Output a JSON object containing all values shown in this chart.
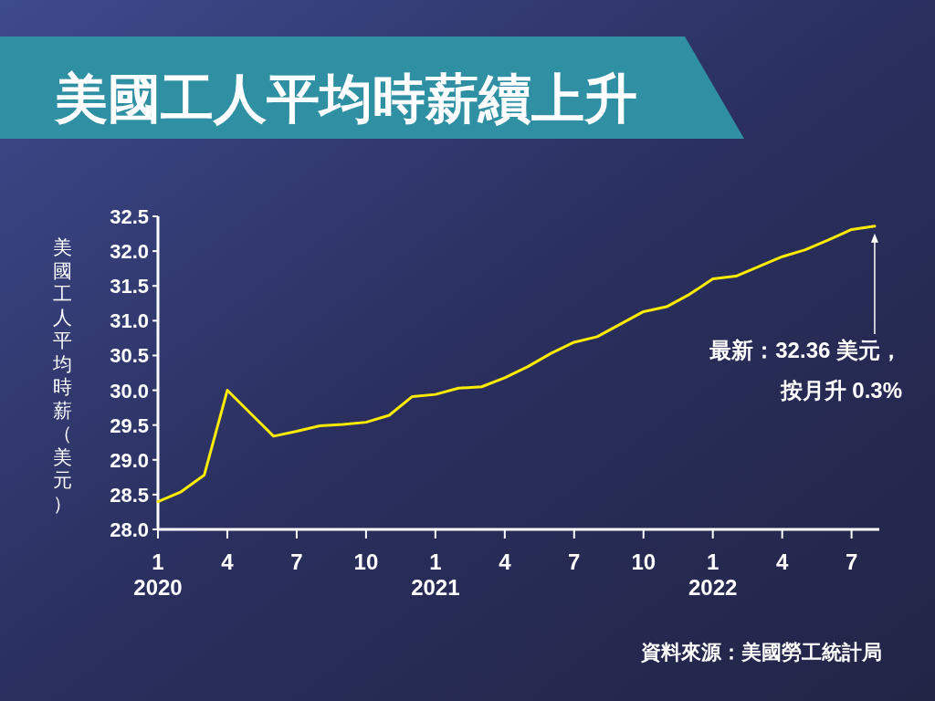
{
  "chart_data": {
    "type": "line",
    "title": "美國工人平均時薪續上升",
    "ylabel": "美國工人平均時薪（美元）",
    "x": [
      "2020-01",
      "2020-02",
      "2020-03",
      "2020-04",
      "2020-05",
      "2020-06",
      "2020-07",
      "2020-08",
      "2020-09",
      "2020-10",
      "2020-11",
      "2020-12",
      "2021-01",
      "2021-02",
      "2021-03",
      "2021-04",
      "2021-05",
      "2021-06",
      "2021-07",
      "2021-08",
      "2021-09",
      "2021-10",
      "2021-11",
      "2021-12",
      "2022-01",
      "2022-02",
      "2022-03",
      "2022-04",
      "2022-05",
      "2022-06",
      "2022-07",
      "2022-08"
    ],
    "series": [
      {
        "color": "#ffec00",
        "values": [
          28.4,
          28.54,
          28.78,
          30.0,
          29.67,
          29.34,
          29.41,
          29.49,
          29.51,
          29.54,
          29.64,
          29.91,
          29.94,
          30.03,
          30.05,
          30.18,
          30.34,
          30.53,
          30.69,
          30.77,
          30.95,
          31.13,
          31.2,
          31.38,
          31.6,
          31.64,
          31.78,
          31.92,
          32.02,
          32.16,
          32.31,
          32.36
        ]
      }
    ],
    "xlim": [
      "2020-01",
      "2022-08-07"
    ],
    "xticks": [
      {
        "value": "2020-01",
        "label": "1\n2020"
      },
      {
        "value": "2020-04",
        "label": "4"
      },
      {
        "value": "2020-07",
        "label": "7"
      },
      {
        "value": "2020-10",
        "label": "10"
      },
      {
        "value": "2021-01",
        "label": "1\n2021"
      },
      {
        "value": "2021-04",
        "label": "4"
      },
      {
        "value": "2021-07",
        "label": "7"
      },
      {
        "value": "2021-10",
        "label": "10"
      },
      {
        "value": "2022-01",
        "label": "1\n2022"
      },
      {
        "value": "2022-04",
        "label": "4"
      },
      {
        "value": "2022-07",
        "label": "7"
      }
    ],
    "ylim": [
      28.0,
      32.5
    ],
    "yticks": [
      {
        "value": 28.0,
        "label": "28.0"
      },
      {
        "value": 28.5,
        "label": "28.5"
      },
      {
        "value": 29.0,
        "label": "29.0"
      },
      {
        "value": 29.5,
        "label": "29.5"
      },
      {
        "value": 30.0,
        "label": "30.0"
      },
      {
        "value": 30.5,
        "label": "30.5"
      },
      {
        "value": 31.0,
        "label": "31.0"
      },
      {
        "value": 31.5,
        "label": "31.5"
      },
      {
        "value": 32.0,
        "label": "32.0"
      },
      {
        "value": 32.5,
        "label": "32.5"
      }
    ],
    "grid": false,
    "marker": "none",
    "line_style": "solid",
    "annotations": [
      "最新：32.36 美元，按月升 0.3%",
      "資料來源：美國勞工統計局"
    ]
  }
}
